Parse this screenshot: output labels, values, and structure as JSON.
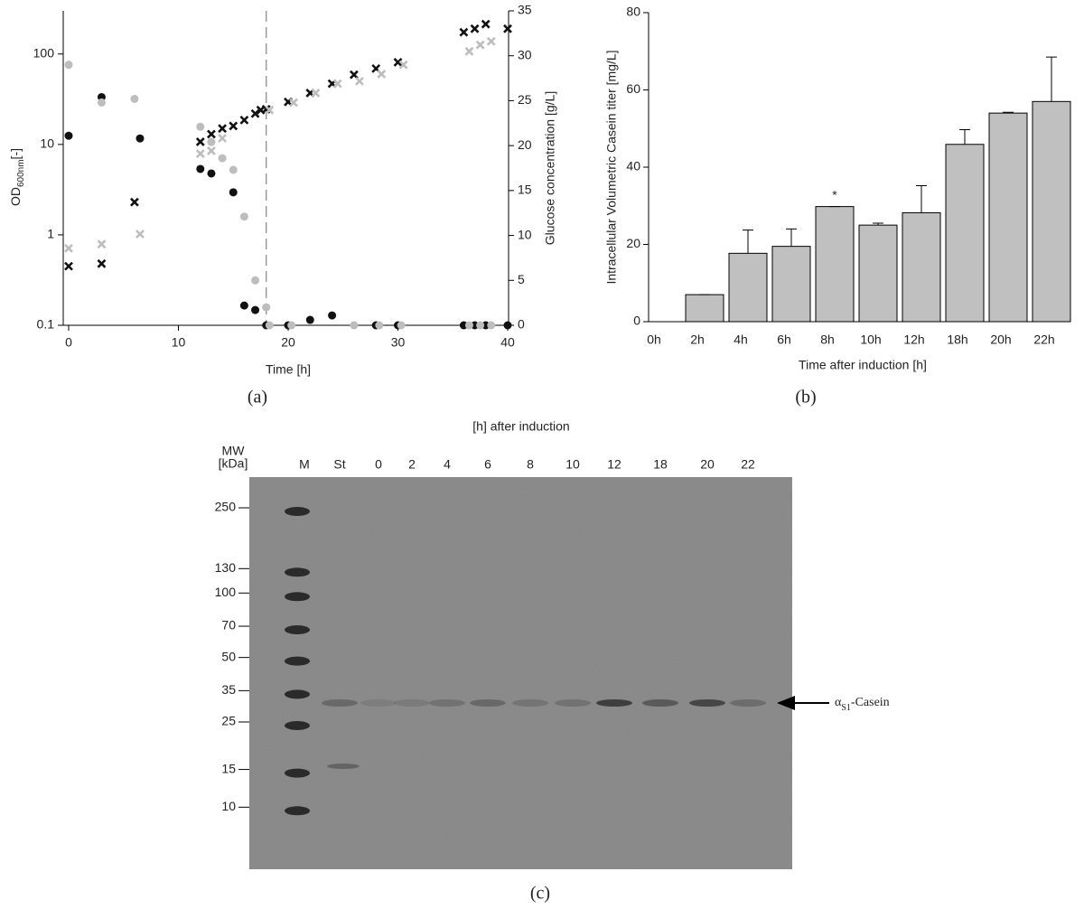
{
  "chart_data": [
    {
      "type": "scatter",
      "panel": "(a)",
      "xlabel": "Time [h]",
      "ylabel": {
        "main": "OD",
        "sub": "600nm",
        "suffix": "[-]"
      },
      "y2label": "Glucose concentration [g/L]",
      "xlim": [
        0,
        40
      ],
      "xticks": [
        0,
        10,
        20,
        30,
        40
      ],
      "ylim": [
        0.1,
        300
      ],
      "yticks": [
        0.1,
        1,
        10,
        100
      ],
      "log_y": true,
      "y2lim": [
        0,
        35
      ],
      "y2ticks": [
        0,
        5,
        10,
        15,
        20,
        25,
        30,
        35
      ],
      "vline_x": 18,
      "series": [
        {
          "marker": "circle",
          "color": "#111111",
          "axis": "y2",
          "x": [
            0,
            3,
            6.5,
            12,
            13,
            15,
            16,
            17,
            18,
            20,
            22,
            24,
            28,
            30,
            36,
            37,
            38,
            40
          ],
          "values": [
            21.1,
            25.4,
            20.8,
            17.4,
            16.9,
            14.8,
            2.2,
            1.7,
            0,
            0,
            0.6,
            1.1,
            0,
            0,
            0,
            0,
            0,
            0
          ]
        },
        {
          "marker": "circle",
          "color": "#bdbdbd",
          "axis": "y2",
          "x": [
            0,
            3,
            6,
            12,
            13,
            14,
            15,
            16,
            17,
            18,
            18.3,
            20.3,
            26,
            28.3,
            30.3,
            36.5,
            37.5,
            38.5
          ],
          "values": [
            29,
            24.8,
            25.2,
            22.1,
            20.4,
            18.6,
            17.3,
            12.1,
            5,
            2,
            0,
            0,
            0,
            0,
            0,
            0,
            0,
            0
          ]
        },
        {
          "marker": "cross",
          "color": "#111111",
          "axis": "y",
          "x": [
            0,
            3,
            6,
            12,
            13,
            14,
            15,
            16,
            17,
            17.5,
            18,
            20,
            22,
            24,
            26,
            28,
            30,
            36,
            37,
            38,
            40
          ],
          "values": [
            0.45,
            0.48,
            2.3,
            10.7,
            13,
            15,
            16,
            18.6,
            21.9,
            24,
            24.5,
            29.5,
            37,
            47,
            59,
            69,
            81,
            174,
            190,
            214,
            190
          ]
        },
        {
          "marker": "cross",
          "color": "#bdbdbd",
          "axis": "y",
          "x": [
            0,
            3,
            6.5,
            12,
            13,
            14,
            18.3,
            20.5,
            22.5,
            24.5,
            26.5,
            28.5,
            30.5,
            36.5,
            37.5,
            38.5
          ],
          "values": [
            0.71,
            0.79,
            1.02,
            7.9,
            8.5,
            11.7,
            24,
            29,
            37,
            47,
            50,
            60,
            76,
            107,
            126,
            138
          ]
        }
      ]
    },
    {
      "type": "bar",
      "panel": "(b)",
      "xlabel": "Time after induction [h]",
      "ylabel": "Intracellular Volumetric Casein titer [mg/L]",
      "categories": [
        "0h",
        "2h",
        "4h",
        "6h",
        "8h",
        "10h",
        "12h",
        "18h",
        "20h",
        "22h"
      ],
      "values": [
        null,
        7,
        17.7,
        19.5,
        29.8,
        25,
        28.2,
        45.9,
        54,
        57
      ],
      "errors": [
        null,
        0,
        6,
        4.5,
        0,
        0.5,
        7,
        3.8,
        0.2,
        11.5
      ],
      "color": "#c0c0c0",
      "ylim": [
        0,
        80
      ],
      "yticks": [
        0,
        20,
        40,
        60,
        80
      ],
      "annotations": [
        {
          "text": "*",
          "x": "8h"
        }
      ]
    }
  ],
  "gel": {
    "panel": "(c)",
    "title": "[h] after induction",
    "mw_label": "MW",
    "unit_label": "[kDa]",
    "lanes": [
      "M",
      "St",
      "0",
      "2",
      "4",
      "6",
      "8",
      "10",
      "12",
      "18",
      "20",
      "22"
    ],
    "markers": [
      250,
      130,
      100,
      70,
      50,
      35,
      25,
      15,
      10
    ],
    "target": {
      "main": "α",
      "sub": "S1",
      "suffix": "-Casein"
    }
  }
}
